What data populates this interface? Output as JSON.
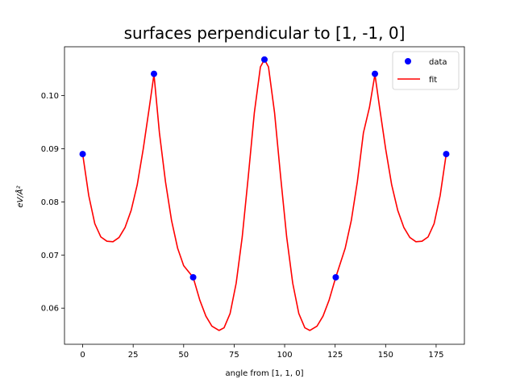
{
  "chart_data": {
    "type": "line",
    "title": "surfaces perpendicular to [1, -1, 0]",
    "xlabel": "angle from [1, 1, 0]",
    "ylabel": "eV/Å²",
    "xlim": [
      -9,
      189
    ],
    "ylim": [
      0.0532,
      0.1092
    ],
    "xticks": [
      0,
      25,
      50,
      75,
      100,
      125,
      150,
      175
    ],
    "yticks": [
      0.06,
      0.07,
      0.08,
      0.09,
      0.1
    ],
    "ytick_labels": [
      "0.06",
      "0.07",
      "0.08",
      "0.09",
      "0.10"
    ],
    "legend_position": "top-right",
    "series": [
      {
        "name": "data",
        "kind": "scatter",
        "color": "#0000ff",
        "x": [
          0,
          35.3,
          54.7,
          90,
          125.3,
          144.7,
          180
        ],
        "y": [
          0.089,
          0.1041,
          0.0658,
          0.1068,
          0.0658,
          0.1041,
          0.089
        ]
      },
      {
        "name": "fit",
        "kind": "line",
        "color": "#ff0000",
        "x": [
          0,
          3,
          6,
          9,
          12,
          15,
          18,
          21,
          24,
          27,
          30,
          33,
          35.3,
          38,
          41,
          44,
          47,
          50,
          54.7,
          58,
          61,
          64,
          67.5,
          70,
          73,
          76,
          79,
          82,
          85,
          88,
          90,
          92,
          95,
          98,
          101,
          104,
          107,
          110,
          112.5,
          116,
          119,
          122,
          125.3,
          130,
          133,
          136,
          139,
          142,
          144.7,
          147,
          150,
          153,
          156,
          159,
          162,
          165,
          168,
          171,
          174,
          177,
          180
        ],
        "y": [
          0.089,
          0.0812,
          0.0759,
          0.0734,
          0.0726,
          0.0725,
          0.0733,
          0.0752,
          0.0784,
          0.0832,
          0.09,
          0.0978,
          0.104,
          0.093,
          0.0838,
          0.0765,
          0.0713,
          0.068,
          0.0658,
          0.0615,
          0.0585,
          0.0566,
          0.0558,
          0.0563,
          0.059,
          0.0647,
          0.0734,
          0.0848,
          0.0968,
          0.1054,
          0.1068,
          0.1054,
          0.0968,
          0.0848,
          0.0734,
          0.0647,
          0.059,
          0.0563,
          0.0558,
          0.0566,
          0.0585,
          0.0615,
          0.0658,
          0.0713,
          0.0765,
          0.0838,
          0.093,
          0.0978,
          0.104,
          0.0978,
          0.09,
          0.0832,
          0.0784,
          0.0752,
          0.0733,
          0.0725,
          0.0726,
          0.0734,
          0.0759,
          0.0812,
          0.089
        ]
      }
    ]
  }
}
